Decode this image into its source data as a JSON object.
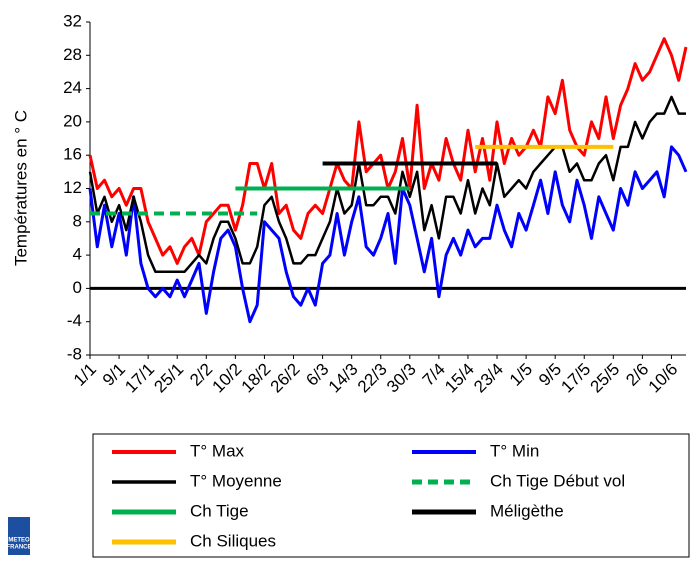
{
  "chart_data": {
    "type": "line",
    "y_label": "Températures en ° C",
    "categories": [
      "1/1",
      null,
      null,
      null,
      "9/1",
      null,
      null,
      null,
      "17/1",
      null,
      null,
      null,
      "25/1",
      null,
      null,
      null,
      "2/2",
      null,
      null,
      null,
      "10/2",
      null,
      null,
      null,
      "18/2",
      null,
      null,
      null,
      "26/2",
      null,
      null,
      null,
      "6/3",
      null,
      null,
      null,
      "14/3",
      null,
      null,
      null,
      "22/3",
      null,
      null,
      null,
      "30/3",
      null,
      null,
      null,
      "7/4",
      null,
      null,
      null,
      "15/4",
      null,
      null,
      null,
      "23/4",
      null,
      null,
      null,
      "1/5",
      null,
      null,
      null,
      "9/5",
      null,
      null,
      null,
      "17/5",
      null,
      null,
      null,
      "25/5",
      null,
      null,
      null,
      "2/6",
      null,
      null,
      null,
      "10/6",
      null,
      null
    ],
    "ylim": [
      -8,
      32
    ],
    "yticks": [
      -8,
      -4,
      0,
      4,
      8,
      12,
      16,
      20,
      24,
      28,
      32
    ],
    "series": [
      {
        "name": "T° Max",
        "color": "#ff0000",
        "width": 3,
        "values": [
          16,
          12,
          13,
          11,
          12,
          10,
          12,
          12,
          8,
          6,
          4,
          5,
          3,
          5,
          6,
          4,
          8,
          9,
          10,
          10,
          7,
          10,
          15,
          15,
          12,
          15,
          9,
          10,
          7,
          6,
          9,
          10,
          9,
          12,
          15,
          13,
          12,
          20,
          14,
          15,
          16,
          12,
          14,
          18,
          12,
          22,
          12,
          15,
          13,
          18,
          15,
          13,
          19,
          14,
          18,
          13,
          20,
          15,
          18,
          16,
          17,
          19,
          17,
          23,
          21,
          25,
          19,
          17,
          16,
          20,
          18,
          23,
          18,
          22,
          24,
          27,
          25,
          26,
          28,
          30,
          28,
          25,
          29
        ]
      },
      {
        "name": "T° Min",
        "color": "#0000ff",
        "width": 3,
        "values": [
          12,
          5,
          10,
          5,
          9,
          4,
          11,
          3,
          0,
          -1,
          0,
          -1,
          1,
          -1,
          1,
          3,
          -3,
          2,
          6,
          7,
          5,
          0,
          -4,
          -2,
          8,
          7,
          6,
          2,
          -1,
          -2,
          0,
          -2,
          3,
          4,
          9,
          4,
          8,
          11,
          5,
          4,
          6,
          9,
          3,
          12,
          10,
          6,
          2,
          6,
          -1,
          4,
          6,
          4,
          7,
          5,
          6,
          6,
          10,
          7,
          5,
          9,
          7,
          10,
          13,
          9,
          14,
          10,
          8,
          13,
          10,
          6,
          11,
          9,
          7,
          12,
          10,
          14,
          12,
          13,
          14,
          11,
          17,
          16,
          14
        ]
      },
      {
        "name": "T° Moyenne",
        "color": "#000000",
        "width": 2.5,
        "values": [
          14,
          9,
          11,
          8,
          10,
          7,
          11,
          8,
          4,
          2,
          2,
          2,
          2,
          2,
          3,
          4,
          3,
          6,
          8,
          8,
          6,
          3,
          3,
          5,
          10,
          11,
          8,
          6,
          3,
          3,
          4,
          4,
          6,
          8,
          12,
          9,
          10,
          15,
          10,
          10,
          11,
          11,
          9,
          14,
          11,
          14,
          7,
          10,
          6,
          11,
          11,
          9,
          13,
          9,
          12,
          10,
          15,
          11,
          12,
          13,
          12,
          14,
          15,
          16,
          17,
          17,
          14,
          15,
          13,
          13,
          15,
          16,
          13,
          17,
          17,
          20,
          18,
          20,
          21,
          21,
          23,
          21,
          21
        ]
      },
      {
        "name": "Ch Tige Début vol",
        "color": "#00b050",
        "width": 4,
        "dash": true,
        "values": [
          9,
          9,
          9,
          9,
          9,
          9,
          9,
          9,
          9,
          9,
          9,
          9,
          9,
          9,
          9,
          9,
          9,
          9,
          9,
          9,
          9,
          9,
          9,
          9,
          null,
          null,
          null,
          null,
          null,
          null,
          null,
          null,
          null,
          null,
          null,
          null,
          null,
          null,
          null,
          null,
          null,
          null,
          null,
          null,
          null,
          null,
          null,
          null,
          null,
          null,
          null,
          null,
          null,
          null,
          null,
          null,
          null,
          null,
          null,
          null,
          null,
          null,
          null,
          null,
          null,
          null,
          null,
          null,
          null,
          null,
          null,
          null,
          null,
          null,
          null,
          null,
          null,
          null,
          null,
          null,
          null,
          null,
          null
        ]
      },
      {
        "name": "Ch Tige",
        "color": "#00b050",
        "width": 4,
        "values": [
          null,
          null,
          null,
          null,
          null,
          null,
          null,
          null,
          null,
          null,
          null,
          null,
          null,
          null,
          null,
          null,
          null,
          null,
          null,
          null,
          12,
          12,
          12,
          12,
          12,
          12,
          12,
          12,
          12,
          12,
          12,
          12,
          12,
          12,
          12,
          12,
          12,
          12,
          12,
          12,
          12,
          12,
          12,
          12,
          12,
          null,
          null,
          null,
          null,
          null,
          null,
          null,
          null,
          null,
          null,
          null,
          null,
          null,
          null,
          null,
          null,
          null,
          null,
          null,
          null,
          null,
          null,
          null,
          null,
          null,
          null,
          null,
          null,
          null,
          null,
          null,
          null,
          null,
          null,
          null,
          null,
          null,
          null
        ]
      },
      {
        "name": "Méligèthe",
        "color": "#000000",
        "width": 4,
        "values": [
          null,
          null,
          null,
          null,
          null,
          null,
          null,
          null,
          null,
          null,
          null,
          null,
          null,
          null,
          null,
          null,
          null,
          null,
          null,
          null,
          null,
          null,
          null,
          null,
          null,
          null,
          null,
          null,
          null,
          null,
          null,
          null,
          15,
          15,
          15,
          15,
          15,
          15,
          15,
          15,
          15,
          15,
          15,
          15,
          15,
          15,
          15,
          15,
          15,
          15,
          15,
          15,
          15,
          15,
          15,
          15,
          15,
          null,
          null,
          null,
          null,
          null,
          null,
          null,
          null,
          null,
          null,
          null,
          null,
          null,
          null,
          null,
          null,
          null,
          null,
          null,
          null,
          null,
          null,
          null,
          null,
          null,
          null
        ]
      },
      {
        "name": "Ch Siliques",
        "color": "#ffc000",
        "width": 4,
        "values": [
          null,
          null,
          null,
          null,
          null,
          null,
          null,
          null,
          null,
          null,
          null,
          null,
          null,
          null,
          null,
          null,
          null,
          null,
          null,
          null,
          null,
          null,
          null,
          null,
          null,
          null,
          null,
          null,
          null,
          null,
          null,
          null,
          null,
          null,
          null,
          null,
          null,
          null,
          null,
          null,
          null,
          null,
          null,
          null,
          null,
          null,
          null,
          null,
          null,
          null,
          null,
          null,
          null,
          17,
          17,
          17,
          17,
          17,
          17,
          17,
          17,
          17,
          17,
          17,
          17,
          17,
          17,
          17,
          17,
          17,
          17,
          17,
          17,
          null,
          null,
          null,
          null,
          null,
          null,
          null,
          null,
          null,
          null
        ]
      }
    ]
  },
  "logo": [
    "METEO",
    "FRANCE"
  ]
}
